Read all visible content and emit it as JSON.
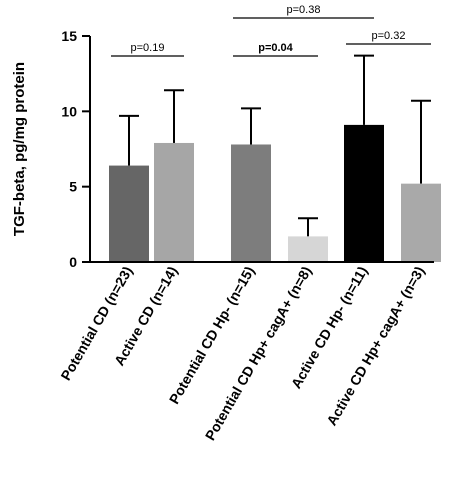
{
  "chart_data": {
    "type": "bar",
    "title": "",
    "xlabel": "",
    "ylabel": "TGF-beta, pg/mg protein",
    "ylim": [
      0,
      15
    ],
    "yticks": [
      "0",
      "5",
      "10",
      "15"
    ],
    "grid": false,
    "legend": "none",
    "categories": [
      "Potential CD (n=23)",
      "Active CD (n=14)",
      "Potential CD Hp- (n=15)",
      "Potential CD Hp+ cagA+ (n=8)",
      "Active CD Hp- (n=11)",
      "Active CD Hp+ cagA+ (n=3)"
    ],
    "values": [
      6.4,
      7.9,
      7.8,
      1.7,
      9.1,
      5.2
    ],
    "error_upper": [
      9.7,
      11.4,
      10.2,
      2.9,
      13.7,
      10.7
    ],
    "colors": [
      "#666666",
      "#a6a6a6",
      "#7d7d7d",
      "#d6d6d6",
      "#000000",
      "#a9a9a9"
    ],
    "annotations": [
      {
        "text": "p=0.19",
        "between": [
          0,
          1
        ],
        "bold": false
      },
      {
        "text": "p=0.04",
        "between": [
          2,
          3
        ],
        "bold": true
      },
      {
        "text": "p=0.38",
        "between": [
          2,
          4
        ],
        "bold": false
      },
      {
        "text": "p=0.32",
        "between": [
          4,
          5
        ],
        "bold": false
      }
    ]
  }
}
